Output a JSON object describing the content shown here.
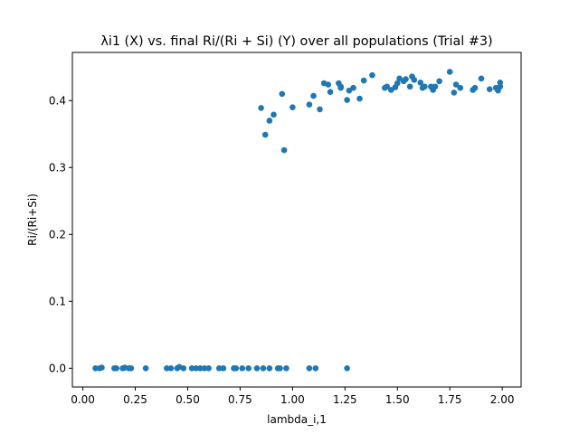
{
  "chart_data": {
    "type": "scatter",
    "title": "λi1 (X) vs. final Ri/(Ri + Si) (Y) over all populations (Trial #3)",
    "xlabel": "lambda_i,1",
    "ylabel": "Ri/(Ri+Si)",
    "xlim": [
      -0.05,
      2.09
    ],
    "ylim": [
      -0.028,
      0.472
    ],
    "xticks": [
      0.0,
      0.25,
      0.5,
      0.75,
      1.0,
      1.25,
      1.5,
      1.75,
      2.0
    ],
    "xtick_labels": [
      "0.00",
      "0.25",
      "0.50",
      "0.75",
      "1.00",
      "1.25",
      "1.50",
      "1.75",
      "2.00"
    ],
    "yticks": [
      0.0,
      0.1,
      0.2,
      0.3,
      0.4
    ],
    "ytick_labels": [
      "0.0",
      "0.1",
      "0.2",
      "0.3",
      "0.4"
    ],
    "grid": false,
    "marker_color": "#1f77b4",
    "points": [
      [
        0.06,
        0.0
      ],
      [
        0.08,
        0.0
      ],
      [
        0.09,
        0.001
      ],
      [
        0.15,
        0.0
      ],
      [
        0.16,
        0.0
      ],
      [
        0.19,
        0.0
      ],
      [
        0.2,
        0.001
      ],
      [
        0.22,
        0.0
      ],
      [
        0.23,
        0.0
      ],
      [
        0.3,
        0.0
      ],
      [
        0.4,
        0.0
      ],
      [
        0.42,
        0.0
      ],
      [
        0.45,
        0.0
      ],
      [
        0.46,
        0.002
      ],
      [
        0.48,
        0.0
      ],
      [
        0.52,
        0.0
      ],
      [
        0.54,
        0.0
      ],
      [
        0.56,
        0.0
      ],
      [
        0.58,
        0.0
      ],
      [
        0.6,
        0.0
      ],
      [
        0.65,
        0.0
      ],
      [
        0.67,
        0.0
      ],
      [
        0.72,
        0.0
      ],
      [
        0.73,
        0.0
      ],
      [
        0.76,
        0.0
      ],
      [
        0.79,
        0.0
      ],
      [
        0.83,
        0.0
      ],
      [
        0.86,
        0.0
      ],
      [
        0.89,
        0.0
      ],
      [
        0.93,
        0.0
      ],
      [
        0.94,
        0.0
      ],
      [
        0.97,
        0.0
      ],
      [
        1.08,
        0.0
      ],
      [
        1.11,
        0.0
      ],
      [
        1.26,
        0.0
      ],
      [
        0.85,
        0.389
      ],
      [
        0.87,
        0.349
      ],
      [
        0.89,
        0.37
      ],
      [
        0.91,
        0.379
      ],
      [
        0.95,
        0.41
      ],
      [
        0.96,
        0.326
      ],
      [
        1.0,
        0.39
      ],
      [
        1.08,
        0.394
      ],
      [
        1.1,
        0.407
      ],
      [
        1.13,
        0.387
      ],
      [
        1.15,
        0.426
      ],
      [
        1.17,
        0.424
      ],
      [
        1.18,
        0.413
      ],
      [
        1.22,
        0.426
      ],
      [
        1.23,
        0.421
      ],
      [
        1.23,
        0.419
      ],
      [
        1.26,
        0.401
      ],
      [
        1.27,
        0.415
      ],
      [
        1.29,
        0.419
      ],
      [
        1.32,
        0.403
      ],
      [
        1.34,
        0.43
      ],
      [
        1.38,
        0.438
      ],
      [
        1.44,
        0.419
      ],
      [
        1.45,
        0.421
      ],
      [
        1.47,
        0.416
      ],
      [
        1.49,
        0.42
      ],
      [
        1.5,
        0.426
      ],
      [
        1.51,
        0.433
      ],
      [
        1.53,
        0.429
      ],
      [
        1.54,
        0.432
      ],
      [
        1.56,
        0.421
      ],
      [
        1.57,
        0.436
      ],
      [
        1.58,
        0.431
      ],
      [
        1.61,
        0.427
      ],
      [
        1.62,
        0.419
      ],
      [
        1.63,
        0.421
      ],
      [
        1.66,
        0.421
      ],
      [
        1.67,
        0.416
      ],
      [
        1.68,
        0.421
      ],
      [
        1.7,
        0.429
      ],
      [
        1.75,
        0.443
      ],
      [
        1.77,
        0.412
      ],
      [
        1.78,
        0.424
      ],
      [
        1.8,
        0.419
      ],
      [
        1.86,
        0.416
      ],
      [
        1.87,
        0.419
      ],
      [
        1.9,
        0.433
      ],
      [
        1.94,
        0.417
      ],
      [
        1.97,
        0.419
      ],
      [
        1.98,
        0.415
      ],
      [
        1.99,
        0.427
      ],
      [
        1.99,
        0.421
      ]
    ]
  }
}
